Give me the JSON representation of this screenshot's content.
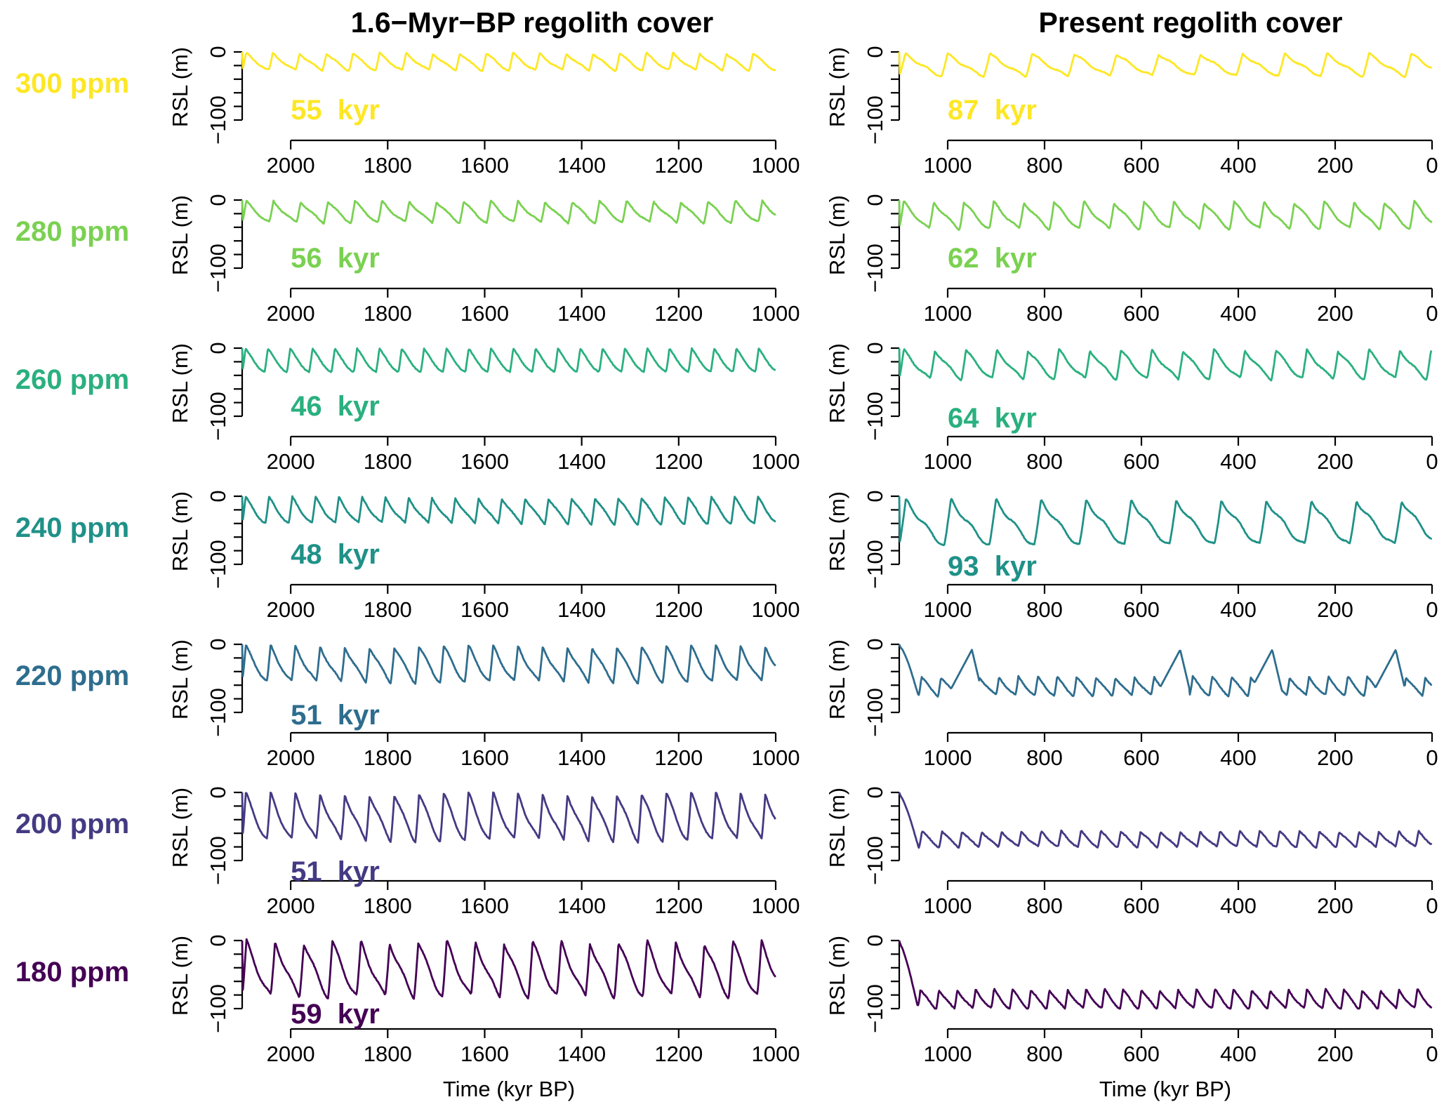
{
  "chart_data": {
    "type": "line",
    "layout": "7 rows x 2 columns of small-multiple line plots",
    "columns": [
      {
        "title": "1.6−Myr−BP regolith cover",
        "xlim": [
          2100,
          1000
        ],
        "xticks": [
          2000,
          1800,
          1600,
          1400,
          1200,
          1000
        ],
        "xlabel": "Time (kyr BP)"
      },
      {
        "title": "Present regolith cover",
        "xlim": [
          1100,
          0
        ],
        "xticks": [
          1000,
          800,
          600,
          400,
          200,
          0
        ],
        "xlabel": "Time (kyr BP)"
      }
    ],
    "ylabel": "RSL (m)",
    "ylim": [
      -100,
      0
    ],
    "yticks": [
      0,
      -20,
      -40,
      -60,
      -80,
      -100
    ],
    "ytick_labels": [
      "0",
      "−100"
    ],
    "grid": false,
    "rows": [
      {
        "co2": "300 ppm",
        "color": "#FDE725",
        "panels": [
          {
            "period_label": "55  kyr",
            "period_kyr": 55,
            "rsl_high": -2,
            "rsl_low": -27,
            "start": 0
          },
          {
            "period_label": "87  kyr",
            "period_kyr": 87,
            "rsl_high": -3,
            "rsl_low": -35,
            "start": 0
          }
        ]
      },
      {
        "co2": "280 ppm",
        "color": "#7AD151",
        "panels": [
          {
            "period_label": "56  kyr",
            "period_kyr": 56,
            "rsl_high": -2,
            "rsl_low": -33,
            "start": 0
          },
          {
            "period_label": "62  kyr",
            "period_kyr": 62,
            "rsl_high": -3,
            "rsl_low": -42,
            "start": 0
          }
        ]
      },
      {
        "co2": "260 ppm",
        "color": "#2AB07F",
        "panels": [
          {
            "period_label": "46  kyr",
            "period_kyr": 46,
            "rsl_high": -2,
            "rsl_low": -35,
            "start": 0
          },
          {
            "period_label": "64  kyr",
            "period_kyr": 64,
            "rsl_high": -3,
            "rsl_low": -45,
            "start": 0
          }
        ]
      },
      {
        "co2": "240 ppm",
        "color": "#1F9188",
        "panels": [
          {
            "period_label": "48  kyr",
            "period_kyr": 48,
            "rsl_high": -2,
            "rsl_low": -40,
            "start": 0
          },
          {
            "period_label": "93  kyr",
            "period_kyr": 93,
            "rsl_high": -6,
            "rsl_low": -72,
            "start": 0
          }
        ]
      },
      {
        "co2": "220 ppm",
        "color": "#2E6D8E",
        "panels": [
          {
            "period_label": "51  kyr",
            "period_kyr": 51,
            "rsl_high": -3,
            "rsl_low": -55,
            "start": 0
          },
          {
            "period_label": "",
            "period_kyr": 40,
            "rsl_high": -48,
            "rsl_low": -75,
            "start": 0,
            "excursions_kyr": [
              950,
              520,
              330,
              75
            ]
          }
        ]
      },
      {
        "co2": "200 ppm",
        "color": "#443A83",
        "panels": [
          {
            "period_label": "51  kyr",
            "period_kyr": 51,
            "rsl_high": -2,
            "rsl_low": -70,
            "start": 0
          },
          {
            "period_label": "",
            "period_kyr": 41,
            "rsl_high": -57,
            "rsl_low": -80,
            "start": 0
          }
        ]
      },
      {
        "co2": "180 ppm",
        "color": "#440154",
        "panels": [
          {
            "period_label": "59  kyr",
            "period_kyr": 59,
            "rsl_high": -2,
            "rsl_low": -82,
            "start": 0
          },
          {
            "period_label": "",
            "period_kyr": 38,
            "rsl_high": -72,
            "rsl_low": -100,
            "start": 0
          }
        ]
      }
    ]
  }
}
